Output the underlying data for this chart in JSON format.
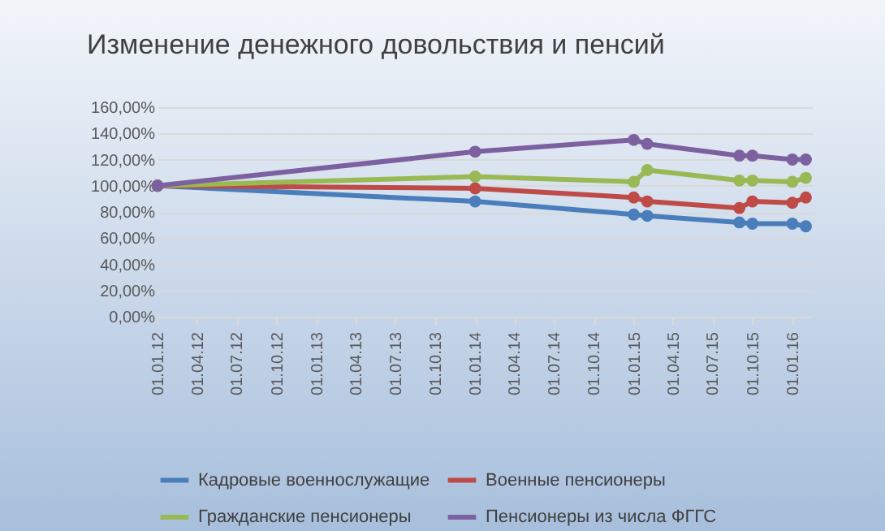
{
  "chart_data": {
    "type": "line",
    "title": "Изменение денежного довольствия и пенсий",
    "x": [
      "2012-01-01",
      "2014-01-01",
      "2015-01-01",
      "2015-02-01",
      "2015-09-01",
      "2015-10-01",
      "2016-01-01",
      "2016-02-01"
    ],
    "series": [
      {
        "name": "Кадровые военнослужащие",
        "color": "#4a7ebb",
        "values": [
          100,
          88,
          78,
          77,
          72,
          71,
          71,
          69
        ]
      },
      {
        "name": "Военные пенсионеры",
        "color": "#be4b48",
        "values": [
          100,
          98,
          91,
          88,
          83,
          88,
          87,
          91
        ]
      },
      {
        "name": "Гражданские пенсионеры",
        "color": "#98b954",
        "values": [
          100,
          107,
          103,
          112,
          104,
          104,
          103,
          106
        ]
      },
      {
        "name": "Пенсионеры из числа ФГГС",
        "color": "#7d60a0",
        "values": [
          100,
          126,
          135,
          132,
          123,
          123,
          120,
          120
        ]
      }
    ],
    "xlim": [
      "2012-01-01",
      "2016-02-15"
    ],
    "xticks": [
      {
        "value": "2012-01-01",
        "label": "01.01.12"
      },
      {
        "value": "2012-04-01",
        "label": "01.04.12"
      },
      {
        "value": "2012-07-01",
        "label": "01.07.12"
      },
      {
        "value": "2012-10-01",
        "label": "01.10.12"
      },
      {
        "value": "2013-01-01",
        "label": "01.01.13"
      },
      {
        "value": "2013-04-01",
        "label": "01.04.13"
      },
      {
        "value": "2013-07-01",
        "label": "01.07.13"
      },
      {
        "value": "2013-10-01",
        "label": "01.10.13"
      },
      {
        "value": "2014-01-01",
        "label": "01.01.14"
      },
      {
        "value": "2014-04-01",
        "label": "01.04.14"
      },
      {
        "value": "2014-07-01",
        "label": "01.07.14"
      },
      {
        "value": "2014-10-01",
        "label": "01.10.14"
      },
      {
        "value": "2015-01-01",
        "label": "01.01.15"
      },
      {
        "value": "2015-04-01",
        "label": "01.04.15"
      },
      {
        "value": "2015-07-01",
        "label": "01.07.15"
      },
      {
        "value": "2015-10-01",
        "label": "01.10.15"
      },
      {
        "value": "2016-01-01",
        "label": "01.01.16"
      }
    ],
    "ylim": [
      0,
      160
    ],
    "yticks": [
      {
        "value": 0,
        "label": "0,00%"
      },
      {
        "value": 20,
        "label": "20,00%"
      },
      {
        "value": 40,
        "label": "40,00%"
      },
      {
        "value": 60,
        "label": "60,00%"
      },
      {
        "value": 80,
        "label": "80,00%"
      },
      {
        "value": 100,
        "label": "100,00%"
      },
      {
        "value": 120,
        "label": "120,00%"
      },
      {
        "value": 140,
        "label": "140,00%"
      },
      {
        "value": 160,
        "label": "160,00%"
      }
    ],
    "grid": "y",
    "legend": "bottom",
    "marker": "circle",
    "line_style": "solid"
  }
}
